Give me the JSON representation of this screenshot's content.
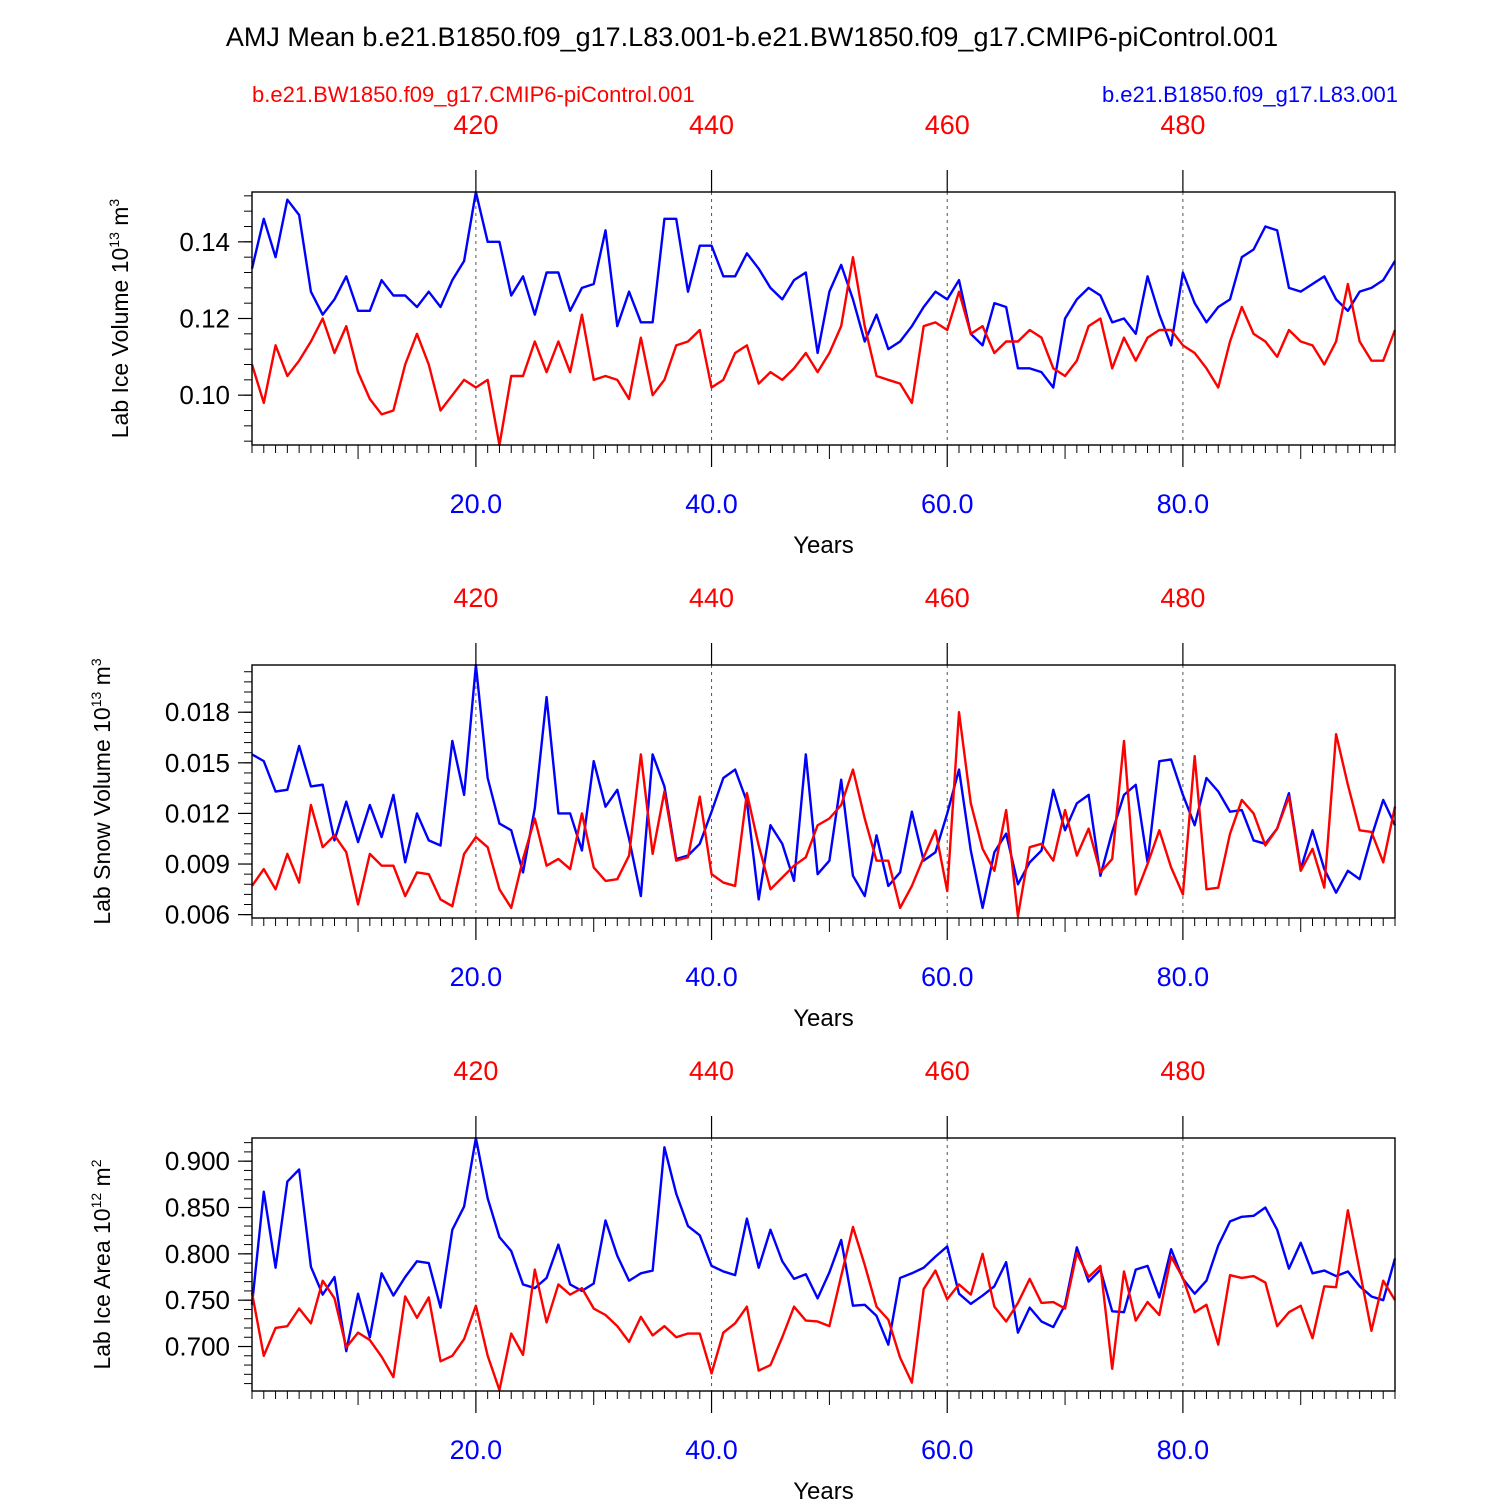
{
  "title": "AMJ Mean b.e21.B1850.f09_g17.L83.001-b.e21.BW1850.f09_g17.CMIP6-piControl.001",
  "legend": {
    "left_label": "b.e21.BW1850.f09_g17.CMIP6-piControl.001",
    "left_color": "#ff0000",
    "right_label": "b.e21.B1850.f09_g17.L83.001",
    "right_color": "#0000ff"
  },
  "chart_data": [
    {
      "type": "line",
      "ylabel_main": "Lab Ice Volume 10",
      "ylabel_exp": "13",
      "ylabel_unit": " m",
      "ylabel_unit_exp": "3",
      "xlabel": "Years",
      "xlim": [
        1,
        98
      ],
      "ylim": [
        0.087,
        0.153
      ],
      "yticks": [
        0.1,
        0.12,
        0.14
      ],
      "ytick_labels": [
        "0.10",
        "0.12",
        "0.14"
      ],
      "bottom_ticks": [
        20,
        40,
        60,
        80
      ],
      "bottom_tick_labels": [
        "20.0",
        "40.0",
        "60.0",
        "80.0"
      ],
      "top_tick_labels": [
        "420",
        "440",
        "460",
        "480"
      ],
      "series": [
        {
          "name": "b.e21.B1850.f09_g17.L83.001",
          "color": "#0000ff",
          "values": [
            0.133,
            0.146,
            0.136,
            0.151,
            0.147,
            0.127,
            0.121,
            0.125,
            0.131,
            0.122,
            0.122,
            0.13,
            0.126,
            0.126,
            0.123,
            0.127,
            0.123,
            0.13,
            0.135,
            0.153,
            0.14,
            0.14,
            0.126,
            0.131,
            0.121,
            0.132,
            0.132,
            0.122,
            0.128,
            0.129,
            0.143,
            0.118,
            0.127,
            0.119,
            0.119,
            0.146,
            0.146,
            0.127,
            0.139,
            0.139,
            0.131,
            0.131,
            0.137,
            0.133,
            0.128,
            0.125,
            0.13,
            0.132,
            0.111,
            0.127,
            0.134,
            0.125,
            0.114,
            0.121,
            0.112,
            0.114,
            0.118,
            0.123,
            0.127,
            0.125,
            0.13,
            0.116,
            0.113,
            0.124,
            0.123,
            0.107,
            0.107,
            0.106,
            0.102,
            0.12,
            0.125,
            0.128,
            0.126,
            0.119,
            0.12,
            0.116,
            0.131,
            0.121,
            0.113,
            0.132,
            0.124,
            0.119,
            0.123,
            0.125,
            0.136,
            0.138,
            0.144,
            0.143,
            0.128,
            0.127,
            0.129,
            0.131,
            0.125,
            0.122,
            0.127,
            0.128,
            0.13,
            0.135
          ]
        },
        {
          "name": "b.e21.BW1850.f09_g17.CMIP6-piControl.001",
          "color": "#ff0000",
          "values": [
            0.108,
            0.098,
            0.113,
            0.105,
            0.109,
            0.114,
            0.12,
            0.111,
            0.118,
            0.106,
            0.099,
            0.095,
            0.096,
            0.108,
            0.116,
            0.108,
            0.096,
            0.1,
            0.104,
            0.102,
            0.104,
            0.087,
            0.105,
            0.105,
            0.114,
            0.106,
            0.114,
            0.106,
            0.121,
            0.104,
            0.105,
            0.104,
            0.099,
            0.115,
            0.1,
            0.104,
            0.113,
            0.114,
            0.117,
            0.102,
            0.104,
            0.111,
            0.113,
            0.103,
            0.106,
            0.104,
            0.107,
            0.111,
            0.106,
            0.111,
            0.118,
            0.136,
            0.118,
            0.105,
            0.104,
            0.103,
            0.098,
            0.118,
            0.119,
            0.117,
            0.127,
            0.116,
            0.118,
            0.111,
            0.114,
            0.114,
            0.117,
            0.115,
            0.107,
            0.105,
            0.109,
            0.118,
            0.12,
            0.107,
            0.115,
            0.109,
            0.115,
            0.117,
            0.117,
            0.113,
            0.111,
            0.107,
            0.102,
            0.114,
            0.123,
            0.116,
            0.114,
            0.11,
            0.117,
            0.114,
            0.113,
            0.108,
            0.114,
            0.129,
            0.114,
            0.109,
            0.109,
            0.117
          ]
        }
      ]
    },
    {
      "type": "line",
      "ylabel_main": "Lab Snow Volume 10",
      "ylabel_exp": "13",
      "ylabel_unit": " m",
      "ylabel_unit_exp": "3",
      "xlabel": "Years",
      "xlim": [
        1,
        98
      ],
      "ylim": [
        0.0058,
        0.0208
      ],
      "yticks": [
        0.006,
        0.009,
        0.012,
        0.015,
        0.018
      ],
      "ytick_labels": [
        "0.006",
        "0.009",
        "0.012",
        "0.015",
        "0.018"
      ],
      "bottom_ticks": [
        20,
        40,
        60,
        80
      ],
      "bottom_tick_labels": [
        "20.0",
        "40.0",
        "60.0",
        "80.0"
      ],
      "top_tick_labels": [
        "420",
        "440",
        "460",
        "480"
      ],
      "series": [
        {
          "name": "b.e21.B1850.f09_g17.L83.001",
          "color": "#0000ff",
          "values": [
            0.0155,
            0.0151,
            0.0133,
            0.0134,
            0.016,
            0.0136,
            0.0137,
            0.0104,
            0.0127,
            0.0103,
            0.0125,
            0.0106,
            0.0131,
            0.0091,
            0.012,
            0.0104,
            0.0101,
            0.0163,
            0.0131,
            0.0208,
            0.0141,
            0.0114,
            0.011,
            0.0085,
            0.0123,
            0.0189,
            0.012,
            0.012,
            0.0098,
            0.0151,
            0.0124,
            0.0134,
            0.0105,
            0.0071,
            0.0155,
            0.0136,
            0.0093,
            0.0095,
            0.0102,
            0.0121,
            0.0141,
            0.0146,
            0.0127,
            0.0069,
            0.0113,
            0.0102,
            0.008,
            0.0155,
            0.0084,
            0.0092,
            0.014,
            0.0083,
            0.0071,
            0.0107,
            0.0077,
            0.0085,
            0.0121,
            0.0092,
            0.0097,
            0.012,
            0.0146,
            0.0098,
            0.0064,
            0.0097,
            0.0108,
            0.0078,
            0.0091,
            0.0098,
            0.0134,
            0.011,
            0.0126,
            0.0131,
            0.0083,
            0.0109,
            0.0131,
            0.0137,
            0.0091,
            0.0151,
            0.0152,
            0.0131,
            0.0113,
            0.0141,
            0.0133,
            0.0121,
            0.0122,
            0.0104,
            0.0102,
            0.0111,
            0.0132,
            0.0087,
            0.011,
            0.0087,
            0.0073,
            0.0086,
            0.0081,
            0.0106,
            0.0128,
            0.0113
          ]
        },
        {
          "name": "b.e21.BW1850.f09_g17.CMIP6-piControl.001",
          "color": "#ff0000",
          "values": [
            0.0077,
            0.0087,
            0.0075,
            0.0096,
            0.0079,
            0.0125,
            0.01,
            0.0107,
            0.0097,
            0.0066,
            0.0096,
            0.0089,
            0.0089,
            0.0071,
            0.0085,
            0.0084,
            0.0069,
            0.0065,
            0.0096,
            0.0106,
            0.01,
            0.0075,
            0.0064,
            0.0093,
            0.0117,
            0.0089,
            0.0093,
            0.0087,
            0.012,
            0.0088,
            0.008,
            0.0081,
            0.0095,
            0.0155,
            0.0096,
            0.0133,
            0.0092,
            0.0094,
            0.013,
            0.0084,
            0.0079,
            0.0077,
            0.0132,
            0.0101,
            0.0075,
            0.0082,
            0.0089,
            0.0094,
            0.0113,
            0.0117,
            0.0125,
            0.0146,
            0.0117,
            0.0092,
            0.0092,
            0.0064,
            0.0077,
            0.0094,
            0.011,
            0.0074,
            0.018,
            0.0126,
            0.0099,
            0.0086,
            0.0122,
            0.0059,
            0.01,
            0.0102,
            0.0092,
            0.0122,
            0.0095,
            0.0111,
            0.0085,
            0.0093,
            0.0163,
            0.0072,
            0.009,
            0.011,
            0.0088,
            0.0072,
            0.0154,
            0.0075,
            0.0076,
            0.0108,
            0.0128,
            0.012,
            0.0101,
            0.0111,
            0.013,
            0.0086,
            0.0099,
            0.0076,
            0.0167,
            0.0137,
            0.011,
            0.0109,
            0.0091,
            0.0124
          ]
        }
      ]
    },
    {
      "type": "line",
      "ylabel_main": "Lab Ice Area 10",
      "ylabel_exp": "12",
      "ylabel_unit": " m",
      "ylabel_unit_exp": "2",
      "xlabel": "Years",
      "xlim": [
        1,
        98
      ],
      "ylim": [
        0.652,
        0.925
      ],
      "yticks": [
        0.7,
        0.75,
        0.8,
        0.85,
        0.9
      ],
      "ytick_labels": [
        "0.700",
        "0.750",
        "0.800",
        "0.850",
        "0.900"
      ],
      "bottom_ticks": [
        20,
        40,
        60,
        80
      ],
      "bottom_tick_labels": [
        "20.0",
        "40.0",
        "60.0",
        "80.0"
      ],
      "top_tick_labels": [
        "420",
        "440",
        "460",
        "480"
      ],
      "series": [
        {
          "name": "b.e21.B1850.f09_g17.L83.001",
          "color": "#0000ff",
          "values": [
            0.745,
            0.867,
            0.785,
            0.878,
            0.891,
            0.786,
            0.756,
            0.775,
            0.695,
            0.757,
            0.71,
            0.779,
            0.755,
            0.775,
            0.792,
            0.79,
            0.742,
            0.826,
            0.851,
            0.925,
            0.86,
            0.818,
            0.803,
            0.767,
            0.763,
            0.774,
            0.81,
            0.767,
            0.76,
            0.768,
            0.836,
            0.798,
            0.771,
            0.779,
            0.782,
            0.915,
            0.865,
            0.83,
            0.82,
            0.787,
            0.781,
            0.777,
            0.838,
            0.785,
            0.826,
            0.792,
            0.773,
            0.778,
            0.752,
            0.78,
            0.815,
            0.744,
            0.745,
            0.733,
            0.702,
            0.774,
            0.779,
            0.785,
            0.797,
            0.808,
            0.757,
            0.746,
            0.755,
            0.765,
            0.791,
            0.715,
            0.742,
            0.727,
            0.721,
            0.745,
            0.807,
            0.77,
            0.783,
            0.738,
            0.737,
            0.783,
            0.787,
            0.753,
            0.805,
            0.773,
            0.757,
            0.771,
            0.809,
            0.835,
            0.84,
            0.841,
            0.85,
            0.826,
            0.784,
            0.812,
            0.779,
            0.782,
            0.776,
            0.781,
            0.765,
            0.754,
            0.75,
            0.795
          ]
        },
        {
          "name": "b.e21.BW1850.f09_g17.CMIP6-piControl.001",
          "color": "#ff0000",
          "values": [
            0.758,
            0.69,
            0.72,
            0.722,
            0.741,
            0.725,
            0.771,
            0.752,
            0.699,
            0.715,
            0.707,
            0.689,
            0.667,
            0.754,
            0.731,
            0.753,
            0.684,
            0.69,
            0.708,
            0.744,
            0.69,
            0.653,
            0.714,
            0.691,
            0.783,
            0.726,
            0.767,
            0.756,
            0.763,
            0.741,
            0.734,
            0.722,
            0.705,
            0.732,
            0.712,
            0.722,
            0.71,
            0.714,
            0.714,
            0.671,
            0.715,
            0.725,
            0.743,
            0.674,
            0.68,
            0.71,
            0.743,
            0.728,
            0.727,
            0.722,
            0.776,
            0.829,
            0.788,
            0.743,
            0.729,
            0.688,
            0.661,
            0.762,
            0.782,
            0.751,
            0.767,
            0.756,
            0.8,
            0.743,
            0.727,
            0.747,
            0.773,
            0.747,
            0.748,
            0.741,
            0.801,
            0.775,
            0.787,
            0.676,
            0.781,
            0.728,
            0.748,
            0.734,
            0.797,
            0.774,
            0.737,
            0.745,
            0.702,
            0.777,
            0.774,
            0.776,
            0.769,
            0.722,
            0.737,
            0.744,
            0.709,
            0.765,
            0.764,
            0.847,
            0.782,
            0.717,
            0.771,
            0.75
          ]
        }
      ]
    }
  ]
}
